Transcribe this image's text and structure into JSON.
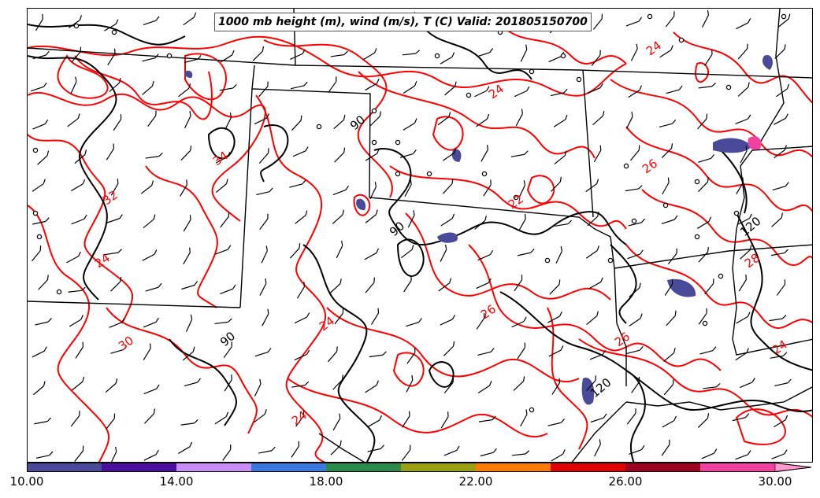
{
  "title": "1000 mb height (m), wind (m/s), T (C) Valid: 201805150700",
  "colorbar": {
    "min": 10.0,
    "max": 30.0,
    "interval": 2.0,
    "colors": [
      "#4a4a9a",
      "#4b0fa0",
      "#c98df5",
      "#3a78e0",
      "#2a8a4a",
      "#9aa010",
      "#ff7a00",
      "#e00000",
      "#9e0020",
      "#f040a0",
      "#ff9ad0"
    ],
    "tick_labels": [
      "10.00",
      "14.00",
      "18.00",
      "22.00",
      "26.00",
      "30.00"
    ],
    "tick_values": [
      10,
      14,
      18,
      22,
      26,
      30
    ]
  },
  "temperature_contour_labels": [
    "24",
    "26",
    "32",
    "34",
    "22",
    "26",
    "24",
    "26",
    "24",
    "28",
    "24",
    "30",
    "24",
    "24"
  ],
  "height_contour_labels": [
    "90",
    "90",
    "120",
    "120",
    "90"
  ],
  "colors": {
    "temperature_contour": "#ff0000",
    "height_contour": "#000000",
    "state_borders": "#000000"
  }
}
